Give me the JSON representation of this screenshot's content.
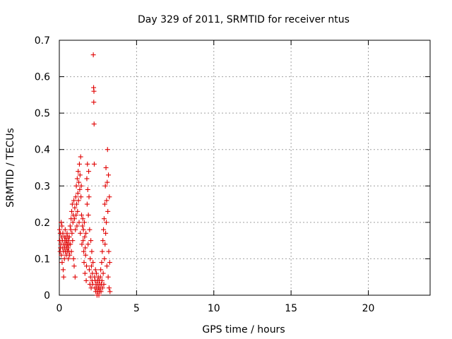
{
  "chart_data": {
    "type": "scatter",
    "title": "Day 329 of 2011, SRMTID for receiver ntus",
    "xlabel": "GPS time / hours",
    "ylabel": "SRMTID / TECUs",
    "xlim": [
      0,
      24
    ],
    "ylim": [
      0,
      0.7
    ],
    "xticks": [
      0,
      5,
      10,
      15,
      20
    ],
    "yticks": [
      0,
      0.1,
      0.2,
      0.3,
      0.4,
      0.5,
      0.6,
      0.7
    ],
    "grid": true,
    "marker": "plus",
    "color": "#e00000",
    "series": [
      {
        "points": [
          [
            0.02,
            0.18
          ],
          [
            0.03,
            0.15
          ],
          [
            0.05,
            0.12
          ],
          [
            0.06,
            0.17
          ],
          [
            0.08,
            0.13
          ],
          [
            0.1,
            0.14
          ],
          [
            0.12,
            0.2
          ],
          [
            0.13,
            0.11
          ],
          [
            0.15,
            0.16
          ],
          [
            0.17,
            0.19
          ],
          [
            0.18,
            0.09
          ],
          [
            0.2,
            0.15
          ],
          [
            0.22,
            0.13
          ],
          [
            0.23,
            0.17
          ],
          [
            0.25,
            0.07
          ],
          [
            0.27,
            0.12
          ],
          [
            0.28,
            0.05
          ],
          [
            0.3,
            0.14
          ],
          [
            0.32,
            0.16
          ],
          [
            0.33,
            0.1
          ],
          [
            0.35,
            0.13
          ],
          [
            0.37,
            0.15
          ],
          [
            0.38,
            0.18
          ],
          [
            0.4,
            0.12
          ],
          [
            0.42,
            0.16
          ],
          [
            0.43,
            0.14
          ],
          [
            0.45,
            0.11
          ],
          [
            0.47,
            0.13
          ],
          [
            0.48,
            0.15
          ],
          [
            0.5,
            0.17
          ],
          [
            0.52,
            0.12
          ],
          [
            0.53,
            0.14
          ],
          [
            0.55,
            0.16
          ],
          [
            0.57,
            0.13
          ],
          [
            0.58,
            0.1
          ],
          [
            0.6,
            0.15
          ],
          [
            0.62,
            0.12
          ],
          [
            0.63,
            0.14
          ],
          [
            0.65,
            0.16
          ],
          [
            0.67,
            0.11
          ],
          [
            0.7,
            0.19
          ],
          [
            0.72,
            0.14
          ],
          [
            0.74,
            0.18
          ],
          [
            0.76,
            0.21
          ],
          [
            0.78,
            0.12
          ],
          [
            0.8,
            0.23
          ],
          [
            0.82,
            0.17
          ],
          [
            0.84,
            0.25
          ],
          [
            0.86,
            0.15
          ],
          [
            0.88,
            0.2
          ],
          [
            0.9,
            0.22
          ],
          [
            0.92,
            0.1
          ],
          [
            0.94,
            0.26
          ],
          [
            0.96,
            0.08
          ],
          [
            0.98,
            0.21
          ],
          [
            1.0,
            0.24
          ],
          [
            1.02,
            0.05
          ],
          [
            1.04,
            0.18
          ],
          [
            1.06,
            0.27
          ],
          [
            1.08,
            0.22
          ],
          [
            1.1,
            0.3
          ],
          [
            1.12,
            0.25
          ],
          [
            1.14,
            0.19
          ],
          [
            1.16,
            0.32
          ],
          [
            1.18,
            0.23
          ],
          [
            1.2,
            0.28
          ],
          [
            1.22,
            0.34
          ],
          [
            1.24,
            0.26
          ],
          [
            1.26,
            0.31
          ],
          [
            1.28,
            0.2
          ],
          [
            1.3,
            0.36
          ],
          [
            1.32,
            0.29
          ],
          [
            1.34,
            0.33
          ],
          [
            1.36,
            0.17
          ],
          [
            1.38,
            0.38
          ],
          [
            1.4,
            0.27
          ],
          [
            1.42,
            0.3
          ],
          [
            1.44,
            0.22
          ],
          [
            1.46,
            0.14
          ],
          [
            1.5,
            0.19
          ],
          [
            1.52,
            0.21
          ],
          [
            1.54,
            0.15
          ],
          [
            1.56,
            0.18
          ],
          [
            1.58,
            0.12
          ],
          [
            1.6,
            0.09
          ],
          [
            1.62,
            0.2
          ],
          [
            1.64,
            0.16
          ],
          [
            1.66,
            0.06
          ],
          [
            1.68,
            0.13
          ],
          [
            1.7,
            0.11
          ],
          [
            1.72,
            0.17
          ],
          [
            1.74,
            0.04
          ],
          [
            1.76,
            0.08
          ],
          [
            1.78,
            0.32
          ],
          [
            1.8,
            0.25
          ],
          [
            1.82,
            0.36
          ],
          [
            1.84,
            0.29
          ],
          [
            1.86,
            0.14
          ],
          [
            1.88,
            0.22
          ],
          [
            1.9,
            0.34
          ],
          [
            1.92,
            0.27
          ],
          [
            1.94,
            0.07
          ],
          [
            1.96,
            0.18
          ],
          [
            1.98,
            0.03
          ],
          [
            2.0,
            0.1
          ],
          [
            2.02,
            0.05
          ],
          [
            2.04,
            0.15
          ],
          [
            2.06,
            0.02
          ],
          [
            2.08,
            0.08
          ],
          [
            2.1,
            0.12
          ],
          [
            2.12,
            0.04
          ],
          [
            2.14,
            0.06
          ],
          [
            2.16,
            0.03
          ],
          [
            2.18,
            0.09
          ],
          [
            2.2,
            0.66
          ],
          [
            2.22,
            0.57
          ],
          [
            2.23,
            0.53
          ],
          [
            2.24,
            0.56
          ],
          [
            2.25,
            0.47
          ],
          [
            2.26,
            0.36
          ],
          [
            2.28,
            0.05
          ],
          [
            2.3,
            0.02
          ],
          [
            2.32,
            0.04
          ],
          [
            2.34,
            0.07
          ],
          [
            2.36,
            0.01
          ],
          [
            2.38,
            0.03
          ],
          [
            2.4,
            0.06
          ],
          [
            2.42,
            0.02
          ],
          [
            2.44,
            0.0
          ],
          [
            2.46,
            0.04
          ],
          [
            2.48,
            0.01
          ],
          [
            2.5,
            0.03
          ],
          [
            2.52,
            0.05
          ],
          [
            2.54,
            0.02
          ],
          [
            2.56,
            0.0
          ],
          [
            2.58,
            0.04
          ],
          [
            2.6,
            0.01
          ],
          [
            2.62,
            0.03
          ],
          [
            2.64,
            0.02
          ],
          [
            2.66,
            0.05
          ],
          [
            2.68,
            0.07
          ],
          [
            2.7,
            0.01
          ],
          [
            2.72,
            0.03
          ],
          [
            2.74,
            0.09
          ],
          [
            2.76,
            0.04
          ],
          [
            2.78,
            0.12
          ],
          [
            2.8,
            0.02
          ],
          [
            2.82,
            0.15
          ],
          [
            2.84,
            0.06
          ],
          [
            2.86,
            0.18
          ],
          [
            2.88,
            0.03
          ],
          [
            2.9,
            0.21
          ],
          [
            2.92,
            0.1
          ],
          [
            2.94,
            0.25
          ],
          [
            2.96,
            0.14
          ],
          [
            2.98,
            0.3
          ],
          [
            3.0,
            0.17
          ],
          [
            3.02,
            0.35
          ],
          [
            3.04,
            0.2
          ],
          [
            3.06,
            0.26
          ],
          [
            3.08,
            0.08
          ],
          [
            3.1,
            0.31
          ],
          [
            3.12,
            0.4
          ],
          [
            3.14,
            0.23
          ],
          [
            3.16,
            0.05
          ],
          [
            3.18,
            0.33
          ],
          [
            3.2,
            0.12
          ],
          [
            3.22,
            0.02
          ],
          [
            3.24,
            0.27
          ],
          [
            3.26,
            0.09
          ],
          [
            3.28,
            0.01
          ]
        ]
      }
    ]
  }
}
